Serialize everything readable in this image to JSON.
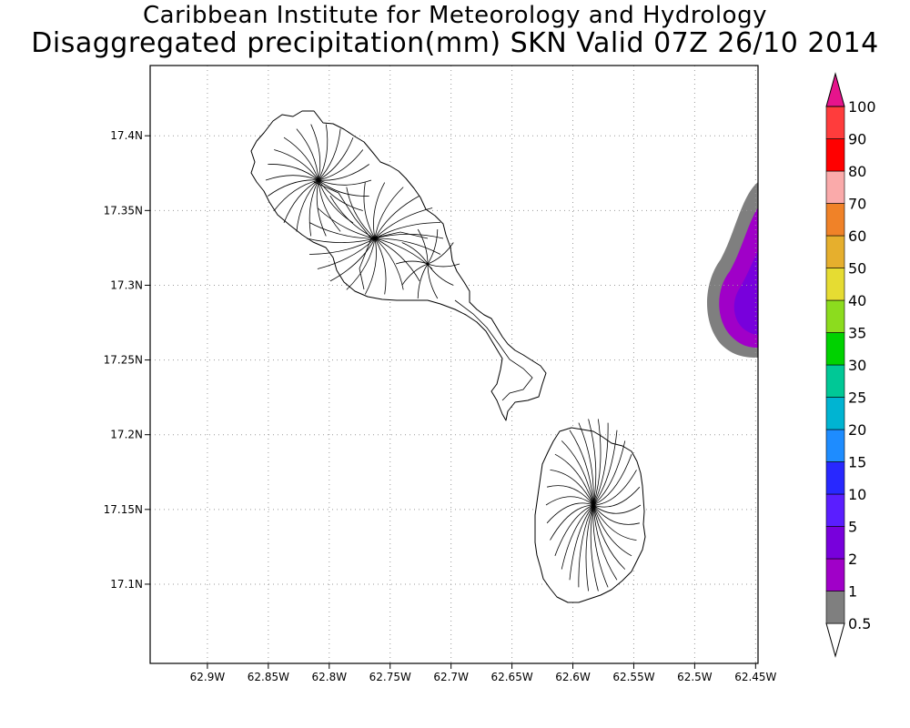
{
  "title": "Caribbean Institute for Meteorology and Hydrology",
  "subtitle": "Disaggregated precipitation(mm) SKN Valid 07Z 26/10 2014",
  "map": {
    "lon_ticks": [
      "62.9W",
      "62.85W",
      "62.8W",
      "62.75W",
      "62.7W",
      "62.65W",
      "62.6W",
      "62.55W",
      "62.5W",
      "62.45W"
    ],
    "lat_ticks": [
      "17.4N",
      "17.35N",
      "17.3N",
      "17.25N",
      "17.2N",
      "17.15N",
      "17.1N"
    ],
    "lon_range": [
      -62.947,
      -62.448
    ],
    "lat_range": [
      17.047,
      17.447
    ],
    "grid": true,
    "features": [
      "St. Kitts island outline with watershed boundaries",
      "Nevis island outline with watershed boundaries",
      "precipitation field at east edge"
    ]
  },
  "colorbar": {
    "labels": [
      "0.5",
      "1",
      "2",
      "5",
      "10",
      "15",
      "20",
      "25",
      "30",
      "35",
      "40",
      "50",
      "60",
      "70",
      "80",
      "90",
      "100"
    ],
    "colors": [
      "#7f7f7f",
      "#a000c8",
      "#7800dc",
      "#5a1eff",
      "#2828ff",
      "#1e8cff",
      "#00b4d2",
      "#00c896",
      "#00d200",
      "#8cdc1e",
      "#e6dc32",
      "#e6af2d",
      "#f08228",
      "#faaaaa",
      "#ff0000",
      "#ff3c3c",
      "#e6148c"
    ]
  },
  "rain_colors": {
    "outer": "#7f7f7f",
    "mid": "#a000c8",
    "inner": "#7800dc"
  }
}
